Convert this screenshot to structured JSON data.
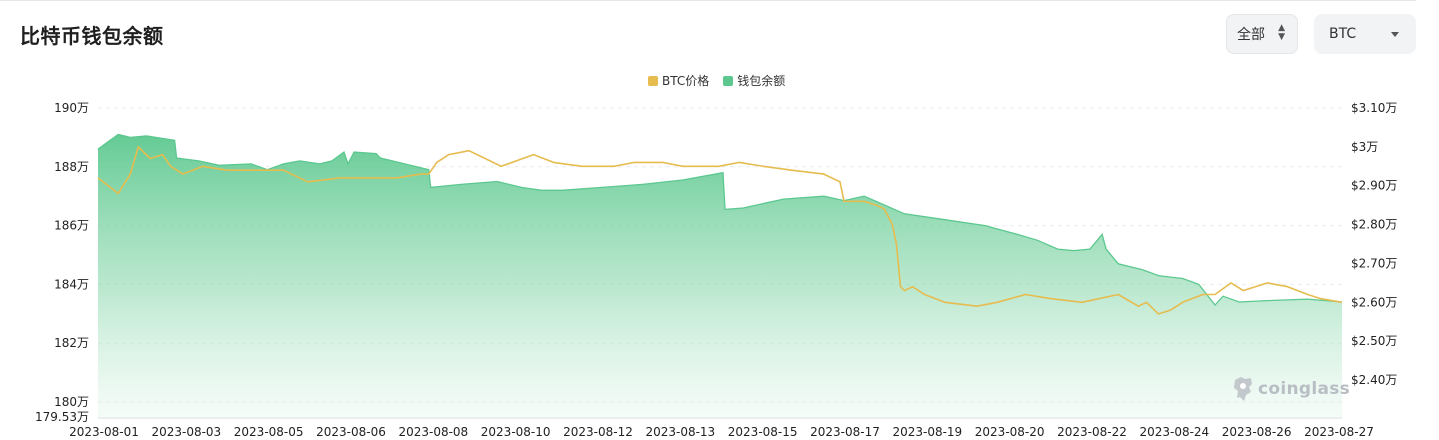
{
  "header": {
    "title": "比特币钱包余额",
    "range_select": {
      "value": "全部"
    },
    "asset_select": {
      "value": "BTC"
    }
  },
  "watermark": {
    "text": "coinglass",
    "icon": "coinglass-logo-icon"
  },
  "colors": {
    "price": "#E6BC4F",
    "balance": "#5CC88F",
    "grid": "#ececec"
  },
  "chart_data": {
    "type": "area",
    "title": "比特币钱包余额",
    "legend": {
      "position": "top-center",
      "items": [
        "BTC价格",
        "钱包余额"
      ]
    },
    "grid": true,
    "x_ticks": [
      "2023-08-01",
      "2023-08-03",
      "2023-08-05",
      "2023-08-06",
      "2023-08-08",
      "2023-08-10",
      "2023-08-12",
      "2023-08-13",
      "2023-08-15",
      "2023-08-17",
      "2023-08-19",
      "2023-08-20",
      "2023-08-22",
      "2023-08-24",
      "2023-08-26",
      "2023-08-27"
    ],
    "y_left": {
      "ticks": [
        "190万",
        "188万",
        "186万",
        "184万",
        "182万",
        "180万"
      ],
      "tick_values": [
        190,
        188,
        186,
        184,
        182,
        180
      ],
      "min_label": "179.53万",
      "range": [
        179.53,
        190
      ]
    },
    "y_right": {
      "ticks": [
        "$3.10万",
        "$3万",
        "$2.90万",
        "$2.80万",
        "$2.70万",
        "$2.60万",
        "$2.50万",
        "$2.40万"
      ],
      "tick_values": [
        3.1,
        3.0,
        2.9,
        2.8,
        2.7,
        2.6,
        2.5,
        2.4
      ],
      "range": [
        2.32,
        3.1
      ]
    },
    "series": [
      {
        "name": "钱包余额",
        "axis": "left",
        "type": "area",
        "points": [
          [
            0,
            188.6
          ],
          [
            0.3,
            188.9
          ],
          [
            0.5,
            189.1
          ],
          [
            0.8,
            189.0
          ],
          [
            1.2,
            189.05
          ],
          [
            1.9,
            188.9
          ],
          [
            1.95,
            188.3
          ],
          [
            2.5,
            188.2
          ],
          [
            3.0,
            188.05
          ],
          [
            3.8,
            188.1
          ],
          [
            4.2,
            187.9
          ],
          [
            4.6,
            188.1
          ],
          [
            5.0,
            188.2
          ],
          [
            5.5,
            188.1
          ],
          [
            5.8,
            188.2
          ],
          [
            6.1,
            188.5
          ],
          [
            6.2,
            188.1
          ],
          [
            6.35,
            188.5
          ],
          [
            6.9,
            188.45
          ],
          [
            7.0,
            188.3
          ],
          [
            7.3,
            188.2
          ],
          [
            7.6,
            188.1
          ],
          [
            8.2,
            187.9
          ],
          [
            8.25,
            187.3
          ],
          [
            9.0,
            187.4
          ],
          [
            9.9,
            187.5
          ],
          [
            10.5,
            187.3
          ],
          [
            11.0,
            187.2
          ],
          [
            11.5,
            187.2
          ],
          [
            12.5,
            187.3
          ],
          [
            13.5,
            187.4
          ],
          [
            14.5,
            187.55
          ],
          [
            15.5,
            187.8
          ],
          [
            15.55,
            186.55
          ],
          [
            16.0,
            186.6
          ],
          [
            17.0,
            186.9
          ],
          [
            18.0,
            187.0
          ],
          [
            18.5,
            186.85
          ],
          [
            19.0,
            187.0
          ],
          [
            20.0,
            186.4
          ],
          [
            21.0,
            186.2
          ],
          [
            22.0,
            186.0
          ],
          [
            22.8,
            185.7
          ],
          [
            23.3,
            185.5
          ],
          [
            23.8,
            185.2
          ],
          [
            24.2,
            185.15
          ],
          [
            24.6,
            185.2
          ],
          [
            24.9,
            185.7
          ],
          [
            25.0,
            185.2
          ],
          [
            25.3,
            184.7
          ],
          [
            25.9,
            184.5
          ],
          [
            26.3,
            184.3
          ],
          [
            26.6,
            184.25
          ],
          [
            26.9,
            184.2
          ],
          [
            27.3,
            184.0
          ],
          [
            27.7,
            183.3
          ],
          [
            27.9,
            183.6
          ],
          [
            28.3,
            183.4
          ],
          [
            29.0,
            183.45
          ],
          [
            30.0,
            183.5
          ],
          [
            30.85,
            183.4
          ]
        ]
      },
      {
        "name": "BTC价格",
        "axis": "right",
        "type": "line",
        "points": [
          [
            0,
            2.92
          ],
          [
            0.5,
            2.88
          ],
          [
            0.8,
            2.93
          ],
          [
            1.0,
            3.0
          ],
          [
            1.3,
            2.97
          ],
          [
            1.6,
            2.98
          ],
          [
            1.8,
            2.95
          ],
          [
            2.1,
            2.93
          ],
          [
            2.6,
            2.95
          ],
          [
            3.2,
            2.94
          ],
          [
            4.0,
            2.94
          ],
          [
            4.6,
            2.94
          ],
          [
            5.2,
            2.91
          ],
          [
            6.0,
            2.92
          ],
          [
            6.8,
            2.92
          ],
          [
            7.4,
            2.92
          ],
          [
            8.0,
            2.93
          ],
          [
            8.2,
            2.93
          ],
          [
            8.4,
            2.96
          ],
          [
            8.7,
            2.98
          ],
          [
            9.2,
            2.99
          ],
          [
            9.6,
            2.97
          ],
          [
            10.0,
            2.95
          ],
          [
            10.8,
            2.98
          ],
          [
            11.3,
            2.96
          ],
          [
            12.0,
            2.95
          ],
          [
            12.8,
            2.95
          ],
          [
            13.3,
            2.96
          ],
          [
            14.0,
            2.96
          ],
          [
            14.5,
            2.95
          ],
          [
            15.0,
            2.95
          ],
          [
            15.4,
            2.95
          ],
          [
            15.9,
            2.96
          ],
          [
            16.5,
            2.95
          ],
          [
            17.2,
            2.94
          ],
          [
            18.0,
            2.93
          ],
          [
            18.4,
            2.91
          ],
          [
            18.5,
            2.86
          ],
          [
            19.0,
            2.86
          ],
          [
            19.3,
            2.85
          ],
          [
            19.5,
            2.84
          ],
          [
            19.7,
            2.8
          ],
          [
            19.8,
            2.75
          ],
          [
            19.9,
            2.64
          ],
          [
            20.0,
            2.63
          ],
          [
            20.2,
            2.64
          ],
          [
            20.5,
            2.62
          ],
          [
            21.0,
            2.6
          ],
          [
            21.8,
            2.59
          ],
          [
            22.3,
            2.6
          ],
          [
            23.0,
            2.62
          ],
          [
            23.6,
            2.61
          ],
          [
            24.4,
            2.6
          ],
          [
            25.3,
            2.62
          ],
          [
            25.8,
            2.59
          ],
          [
            26.0,
            2.6
          ],
          [
            26.3,
            2.57
          ],
          [
            26.6,
            2.58
          ],
          [
            26.9,
            2.6
          ],
          [
            27.4,
            2.62
          ],
          [
            27.7,
            2.62
          ],
          [
            28.1,
            2.65
          ],
          [
            28.4,
            2.63
          ],
          [
            29.0,
            2.65
          ],
          [
            29.5,
            2.64
          ],
          [
            30.0,
            2.62
          ],
          [
            30.3,
            2.61
          ],
          [
            30.85,
            2.6
          ]
        ]
      }
    ]
  }
}
